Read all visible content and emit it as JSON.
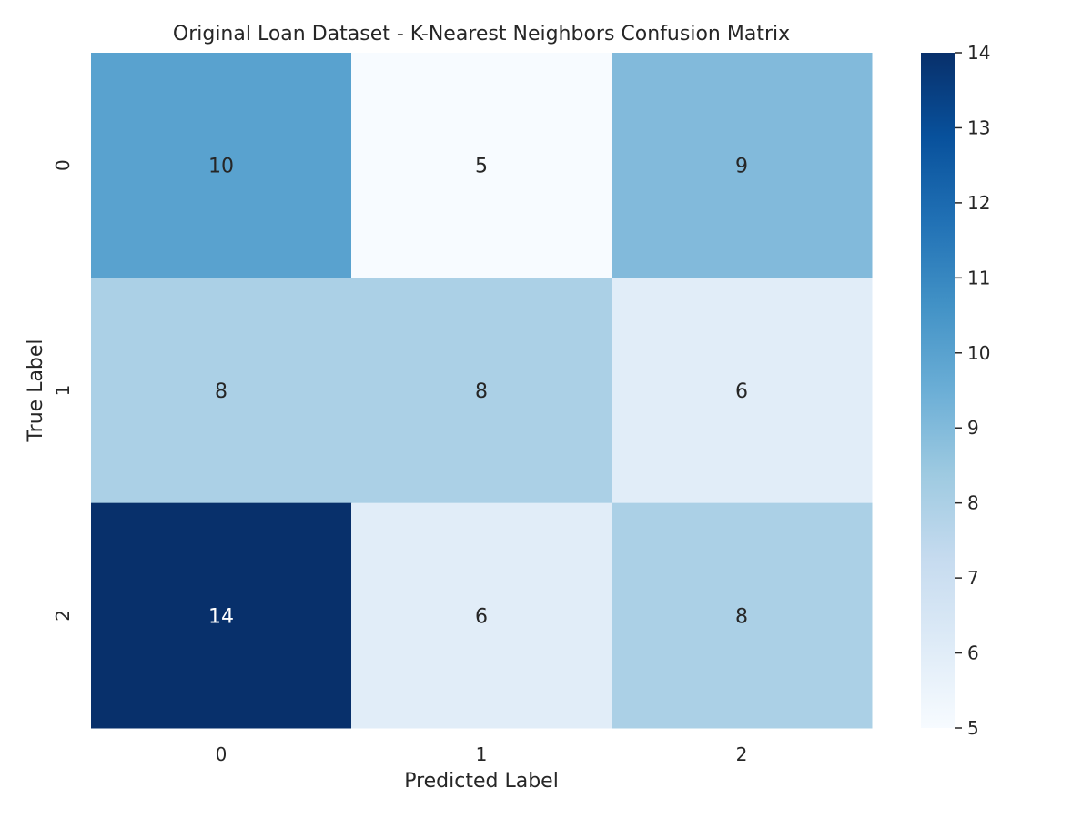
{
  "chart_data": {
    "type": "heatmap",
    "title": "Original Loan Dataset - K-Nearest Neighbors Confusion Matrix",
    "xlabel": "Predicted Label",
    "ylabel": "True Label",
    "x_categories": [
      "0",
      "1",
      "2"
    ],
    "y_categories": [
      "0",
      "1",
      "2"
    ],
    "values": [
      [
        10,
        5,
        9
      ],
      [
        8,
        8,
        6
      ],
      [
        14,
        6,
        8
      ]
    ],
    "colorbar": {
      "min": 5,
      "max": 14,
      "ticks": [
        5,
        6,
        7,
        8,
        9,
        10,
        11,
        12,
        13,
        14
      ]
    },
    "colormap": "Blues",
    "colormap_stops": [
      "#f7fbff",
      "#deebf7",
      "#c6dbef",
      "#9ecae1",
      "#6baed6",
      "#4292c6",
      "#2171b5",
      "#08519c",
      "#08306b"
    ],
    "annotation_dark_color": "#262626",
    "annotation_light_color": "#ffffff"
  }
}
